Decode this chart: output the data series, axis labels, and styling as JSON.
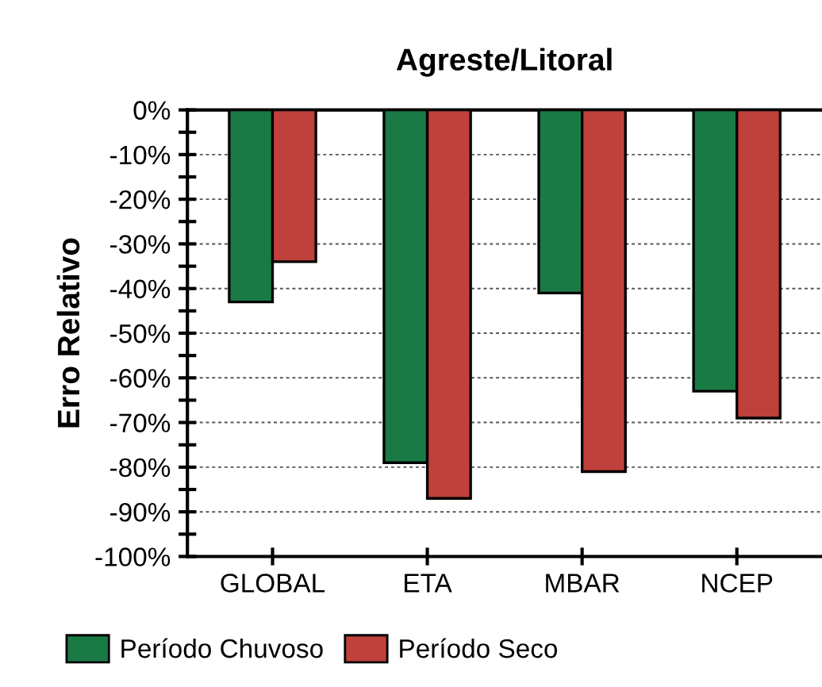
{
  "chart_data": {
    "type": "bar",
    "title": "Agreste/Litoral",
    "ylabel": "Erro Relativo",
    "categories": [
      "GLOBAL",
      "ETA",
      "MBAR",
      "NCEP"
    ],
    "series": [
      {
        "name": "Período Chuvoso",
        "color": "#1a7a45",
        "values": [
          -43,
          -79,
          -41,
          -63
        ]
      },
      {
        "name": "Período Seco",
        "color": "#c0403c",
        "values": [
          -34,
          -87,
          -81,
          -69
        ]
      }
    ],
    "ylim": [
      -100,
      0
    ],
    "yticks": [
      {
        "value": 0,
        "label": "0%"
      },
      {
        "value": -5,
        "label": null
      },
      {
        "value": -10,
        "label": "-10%"
      },
      {
        "value": -15,
        "label": null
      },
      {
        "value": -20,
        "label": "-20%"
      },
      {
        "value": -25,
        "label": null
      },
      {
        "value": -30,
        "label": "-30%"
      },
      {
        "value": -35,
        "label": null
      },
      {
        "value": -40,
        "label": "-40%"
      },
      {
        "value": -45,
        "label": null
      },
      {
        "value": -50,
        "label": "-50%"
      },
      {
        "value": -55,
        "label": null
      },
      {
        "value": -60,
        "label": "-60%"
      },
      {
        "value": -65,
        "label": null
      },
      {
        "value": -70,
        "label": "-70%"
      },
      {
        "value": -75,
        "label": null
      },
      {
        "value": -80,
        "label": "-80%"
      },
      {
        "value": -85,
        "label": null
      },
      {
        "value": -90,
        "label": "-90%"
      },
      {
        "value": -95,
        "label": null
      },
      {
        "value": -100,
        "label": "-100%"
      }
    ],
    "grid": "y",
    "legend": "bottom"
  }
}
